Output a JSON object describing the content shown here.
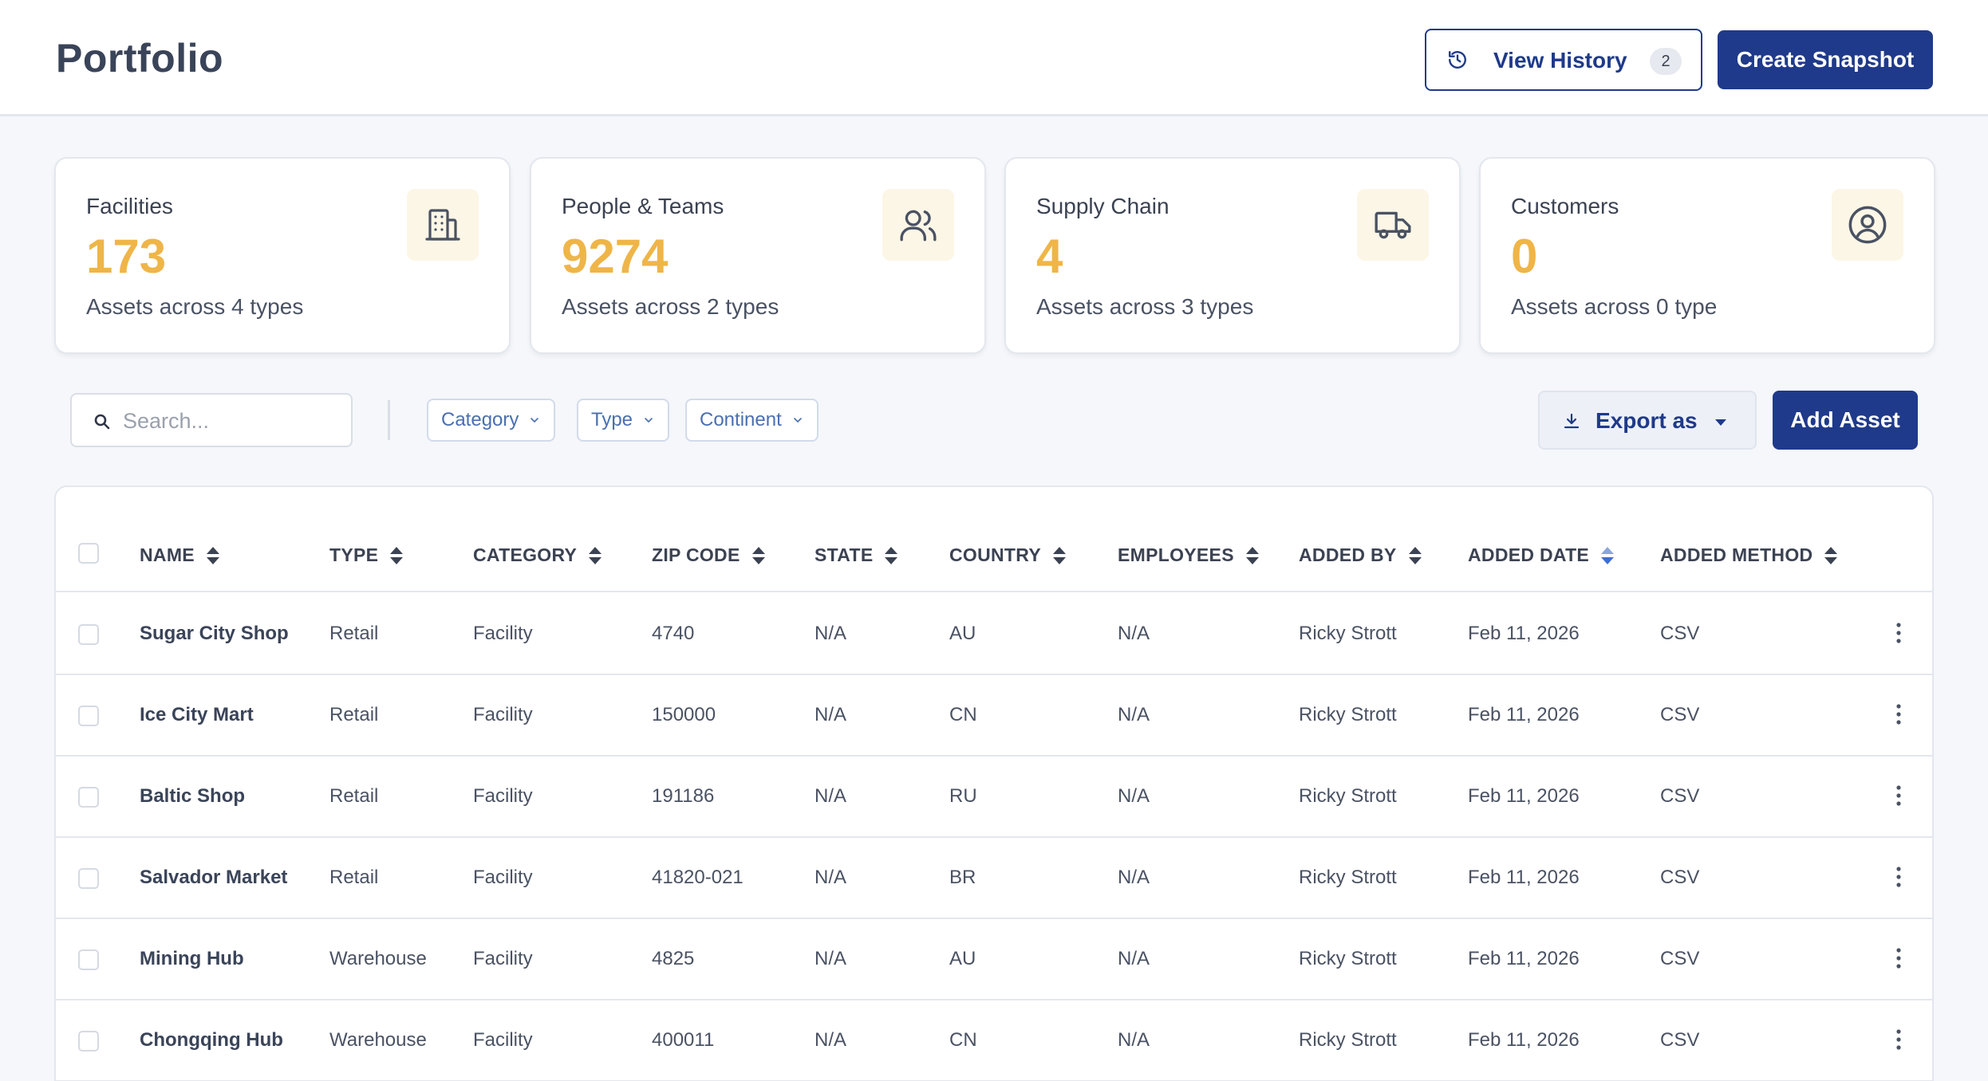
{
  "header": {
    "title": "Portfolio",
    "history_label": "View History",
    "history_count": "2",
    "snapshot_label": "Create Snapshot"
  },
  "cards": [
    {
      "title": "Facilities",
      "value": "173",
      "subtitle": "Assets across 4 types",
      "icon": "building-icon"
    },
    {
      "title": "People & Teams",
      "value": "9274",
      "subtitle": "Assets across 2 types",
      "icon": "users-icon"
    },
    {
      "title": "Supply Chain",
      "value": "4",
      "subtitle": "Assets across 3 types",
      "icon": "truck-icon"
    },
    {
      "title": "Customers",
      "value": "0",
      "subtitle": "Assets across 0 type",
      "icon": "user-circle-icon"
    }
  ],
  "toolbar": {
    "search_placeholder": "Search...",
    "filters": [
      "Category",
      "Type",
      "Continent"
    ],
    "export_label": "Export as",
    "add_label": "Add Asset"
  },
  "table": {
    "columns": [
      "NAME",
      "TYPE",
      "CATEGORY",
      "ZIP CODE",
      "STATE",
      "COUNTRY",
      "EMPLOYEES",
      "ADDED BY",
      "ADDED DATE",
      "ADDED METHOD"
    ],
    "sorted_column": "ADDED DATE",
    "rows": [
      [
        "Sugar City Shop",
        "Retail",
        "Facility",
        "4740",
        "N/A",
        "AU",
        "N/A",
        "Ricky Strott",
        "Feb 11, 2026",
        "CSV"
      ],
      [
        "Ice City Mart",
        "Retail",
        "Facility",
        "150000",
        "N/A",
        "CN",
        "N/A",
        "Ricky Strott",
        "Feb 11, 2026",
        "CSV"
      ],
      [
        "Baltic Shop",
        "Retail",
        "Facility",
        "191186",
        "N/A",
        "RU",
        "N/A",
        "Ricky Strott",
        "Feb 11, 2026",
        "CSV"
      ],
      [
        "Salvador Market",
        "Retail",
        "Facility",
        "41820-021",
        "N/A",
        "BR",
        "N/A",
        "Ricky Strott",
        "Feb 11, 2026",
        "CSV"
      ],
      [
        "Mining Hub",
        "Warehouse",
        "Facility",
        "4825",
        "N/A",
        "AU",
        "N/A",
        "Ricky Strott",
        "Feb 11, 2026",
        "CSV"
      ],
      [
        "Chongqing Hub",
        "Warehouse",
        "Facility",
        "400011",
        "N/A",
        "CN",
        "N/A",
        "Ricky Strott",
        "Feb 11, 2026",
        "CSV"
      ]
    ]
  },
  "colors": {
    "primary": "#1f3a8a",
    "accent": "#efb548",
    "filter_text": "#4a6fb0",
    "active_sort": "#3b6fd6"
  }
}
